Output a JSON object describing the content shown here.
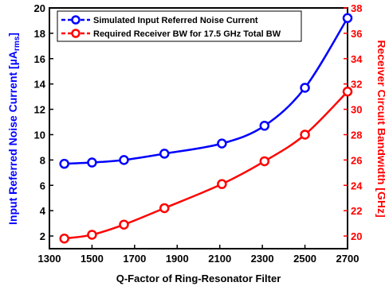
{
  "chart_data": {
    "type": "line",
    "xlabel": "Q-Factor of Ring-Resonator Filter",
    "ylabel_left": {
      "text": "Input Referred Noise Current [",
      "mu": "µ",
      "unit": "A",
      "sub": "rms",
      "close": "]"
    },
    "ylabel_right": "Receiver Circuit Bandwidth [GHz]",
    "xlim": [
      1300,
      2700
    ],
    "x_ticks": [
      1300,
      1500,
      1700,
      1900,
      2100,
      2300,
      2500,
      2700
    ],
    "ylim_left": [
      1,
      20
    ],
    "y_ticks_left": [
      2,
      4,
      6,
      8,
      10,
      12,
      14,
      16,
      18,
      20
    ],
    "ylim_right": [
      19,
      38
    ],
    "y_ticks_right": [
      20,
      22,
      24,
      26,
      28,
      30,
      32,
      34,
      36,
      38
    ],
    "grid": false,
    "legend_position": "top-left",
    "series": [
      {
        "name": "Simulated Input Referred Noise Current",
        "axis": "left",
        "color": "#0000ff",
        "x": [
          1370,
          1500,
          1650,
          1840,
          2110,
          2310,
          2500,
          2700
        ],
        "y": [
          7.7,
          7.8,
          8.0,
          8.5,
          9.3,
          10.7,
          13.7,
          19.2
        ]
      },
      {
        "name": "Required Receiver BW for 17.5 GHz Total BW",
        "axis": "right",
        "color": "#ff0000",
        "x": [
          1370,
          1500,
          1650,
          1840,
          2110,
          2310,
          2500,
          2700
        ],
        "y": [
          19.8,
          20.1,
          20.9,
          22.2,
          24.1,
          25.9,
          28.0,
          31.4
        ]
      }
    ]
  }
}
